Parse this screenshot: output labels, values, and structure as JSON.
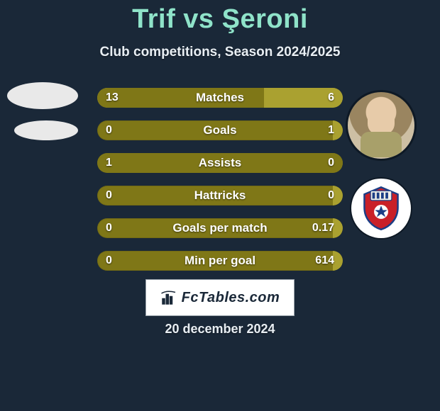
{
  "title": {
    "player1": "Trif",
    "vs": "vs",
    "player2": "Şeroni"
  },
  "subtitle": "Club competitions, Season 2024/2025",
  "date": "20 december 2024",
  "brand": "FcTables.com",
  "colors": {
    "background": "#1a2838",
    "title": "#8fe3c9",
    "bar_bg": "#aaa130",
    "bar_fill": "#7f7717",
    "text": "#e8eef3"
  },
  "stats": [
    {
      "label": "Matches",
      "left_value": "13",
      "right_value": "6",
      "left_fill_pct": 68,
      "right_fill_pct": 32
    },
    {
      "label": "Goals",
      "left_value": "0",
      "right_value": "1",
      "left_fill_pct": 0,
      "right_fill_pct": 100
    },
    {
      "label": "Assists",
      "left_value": "1",
      "right_value": "0",
      "left_fill_pct": 100,
      "right_fill_pct": 0
    },
    {
      "label": "Hattricks",
      "left_value": "0",
      "right_value": "0",
      "left_fill_pct": 0,
      "right_fill_pct": 0,
      "empty": true
    },
    {
      "label": "Goals per match",
      "left_value": "0",
      "right_value": "0.17",
      "left_fill_pct": 0,
      "right_fill_pct": 100
    },
    {
      "label": "Min per goal",
      "left_value": "0",
      "right_value": "614",
      "left_fill_pct": 0,
      "right_fill_pct": 100
    }
  ],
  "crest_label": "FOTBAL CLUB BOTOȘANI"
}
